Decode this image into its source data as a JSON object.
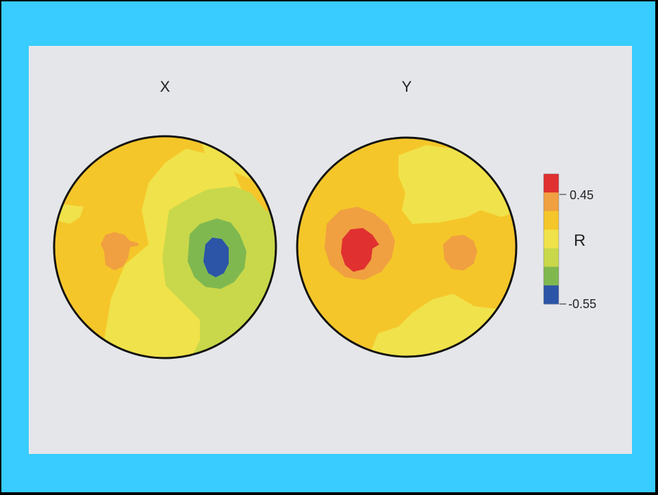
{
  "chart_data": {
    "type": "heatmap",
    "subtype": "topographic-map",
    "panels": [
      {
        "title": "X",
        "regions": [
          {
            "label": "left orange patch",
            "value": 0.3
          },
          {
            "label": "left core",
            "value": 0.35
          },
          {
            "label": "right green ring",
            "value": -0.2
          },
          {
            "label": "right middle ring",
            "value": -0.35
          },
          {
            "label": "right blue core",
            "value": -0.55
          }
        ]
      },
      {
        "title": "Y",
        "regions": [
          {
            "label": "left orange patch",
            "value": 0.3
          },
          {
            "label": "left red core",
            "value": 0.45
          },
          {
            "label": "right orange patch",
            "value": 0.3
          },
          {
            "label": "upper light patch",
            "value": 0.05
          }
        ]
      }
    ],
    "colorbar": {
      "label": "R",
      "max_label": "0.45",
      "min_label": "-0.55",
      "range": [
        -0.55,
        0.45
      ],
      "colors": [
        "#e03030",
        "#f0a040",
        "#f5c62a",
        "#f0e24a",
        "#c8d84a",
        "#80b850",
        "#2c55a8"
      ]
    }
  },
  "colors": {
    "outer_frame": "#38ccff",
    "panel_bg": "#e5e6ea",
    "base_yellow": "#f5c62a",
    "light_yellow": "#f0e24a",
    "orange": "#f0a040",
    "red": "#e03030",
    "yellow_green": "#c8d84a",
    "green": "#80b850",
    "blue": "#2c55a8"
  }
}
